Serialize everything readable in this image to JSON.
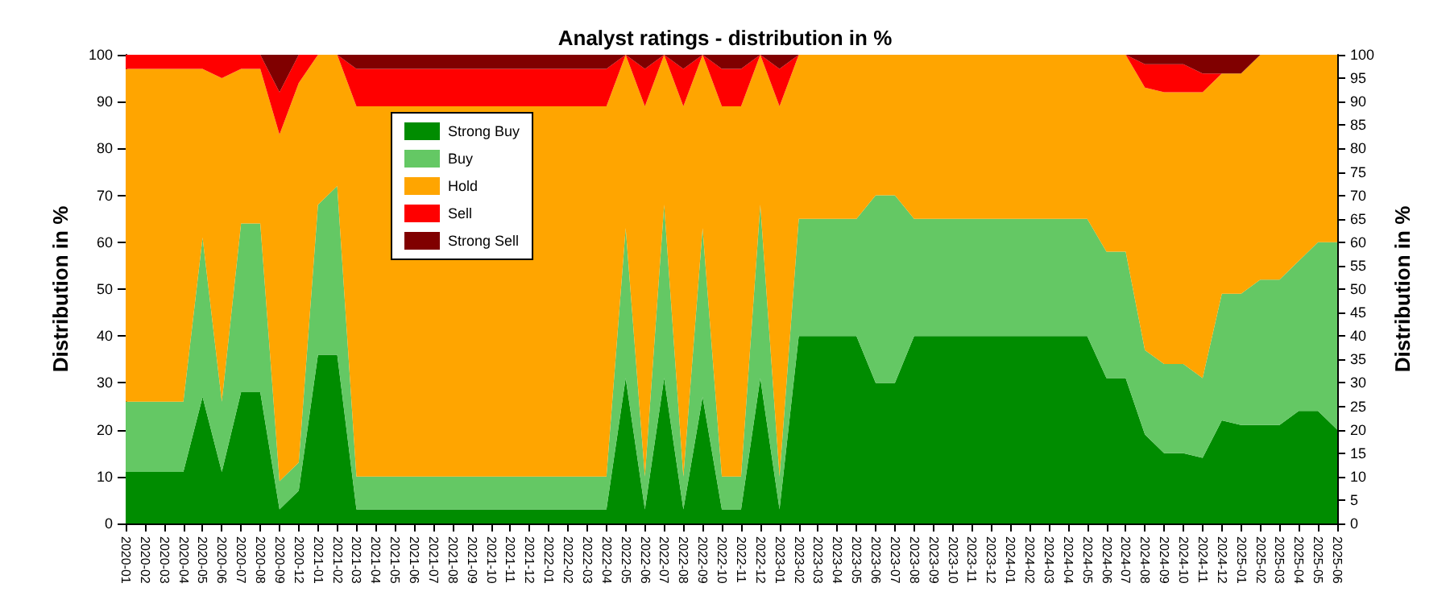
{
  "chart_data": {
    "type": "area",
    "stacked": true,
    "title": "Analyst ratings - distribution in %",
    "ylabel": "Distribution in %",
    "y2label": "Distribution in %",
    "categories": [
      "2020-01",
      "2020-02",
      "2020-03",
      "2020-04",
      "2020-05",
      "2020-06",
      "2020-07",
      "2020-08",
      "2020-09",
      "2020-12",
      "2021-01",
      "2021-02",
      "2021-03",
      "2021-04",
      "2021-05",
      "2021-06",
      "2021-07",
      "2021-08",
      "2021-09",
      "2021-10",
      "2021-11",
      "2021-12",
      "2022-01",
      "2022-02",
      "2022-03",
      "2022-04",
      "2022-05",
      "2022-06",
      "2022-07",
      "2022-08",
      "2022-09",
      "2022-10",
      "2022-11",
      "2022-12",
      "2023-01",
      "2023-02",
      "2023-03",
      "2023-04",
      "2023-05",
      "2023-06",
      "2023-07",
      "2023-08",
      "2023-09",
      "2023-10",
      "2023-11",
      "2023-12",
      "2024-01",
      "2024-02",
      "2024-03",
      "2024-04",
      "2024-05",
      "2024-06",
      "2024-07",
      "2024-08",
      "2024-09",
      "2024-10",
      "2024-11",
      "2024-12",
      "2025-01",
      "2025-02",
      "2025-03",
      "2025-04",
      "2025-05",
      "2025-06"
    ],
    "series": [
      {
        "name": "Strong Buy",
        "color": "#008c00",
        "values": [
          11,
          11,
          11,
          11,
          27,
          11,
          28,
          28,
          3,
          7,
          36,
          36,
          3,
          3,
          3,
          3,
          3,
          3,
          3,
          3,
          3,
          3,
          3,
          3,
          3,
          3,
          31,
          3,
          31,
          3,
          27,
          3,
          3,
          31,
          3,
          40,
          40,
          40,
          40,
          30,
          30,
          40,
          40,
          40,
          40,
          40,
          40,
          40,
          40,
          40,
          40,
          31,
          31,
          19,
          15,
          15,
          14,
          22,
          21,
          21,
          21,
          24,
          24,
          20
        ]
      },
      {
        "name": "Buy",
        "color": "#64c864",
        "values": [
          15,
          15,
          15,
          15,
          34,
          15,
          36,
          36,
          6,
          6,
          32,
          36,
          7,
          7,
          7,
          7,
          7,
          7,
          7,
          7,
          7,
          7,
          7,
          7,
          7,
          7,
          32,
          7,
          37,
          7,
          36,
          7,
          7,
          37,
          7,
          25,
          25,
          25,
          25,
          40,
          40,
          25,
          25,
          25,
          25,
          25,
          25,
          25,
          25,
          25,
          25,
          27,
          27,
          18,
          19,
          19,
          17,
          27,
          28,
          31,
          31,
          32,
          36,
          40
        ]
      },
      {
        "name": "Hold",
        "color": "#ffa500",
        "values": [
          71,
          71,
          71,
          71,
          36,
          69,
          33,
          33,
          74,
          81,
          32,
          28,
          79,
          79,
          79,
          79,
          79,
          79,
          79,
          79,
          79,
          79,
          79,
          79,
          79,
          79,
          37,
          79,
          32,
          79,
          37,
          79,
          79,
          32,
          79,
          35,
          35,
          35,
          35,
          30,
          30,
          35,
          35,
          35,
          35,
          35,
          35,
          35,
          35,
          35,
          35,
          42,
          42,
          56,
          58,
          58,
          61,
          47,
          47,
          48,
          48,
          44,
          40,
          40
        ]
      },
      {
        "name": "Sell",
        "color": "#ff0000",
        "values": [
          3,
          3,
          3,
          3,
          3,
          5,
          3,
          3,
          9,
          6,
          0,
          0,
          8,
          8,
          8,
          8,
          8,
          8,
          8,
          8,
          8,
          8,
          8,
          8,
          8,
          8,
          0,
          8,
          0,
          8,
          0,
          8,
          8,
          0,
          8,
          0,
          0,
          0,
          0,
          0,
          0,
          0,
          0,
          0,
          0,
          0,
          0,
          0,
          0,
          0,
          0,
          0,
          0,
          5,
          6,
          6,
          4,
          0,
          0,
          0,
          0,
          0,
          0,
          0
        ]
      },
      {
        "name": "Strong Sell",
        "color": "#800000",
        "values": [
          0,
          0,
          0,
          0,
          0,
          0,
          0,
          0,
          8,
          0,
          0,
          0,
          3,
          3,
          3,
          3,
          3,
          3,
          3,
          3,
          3,
          3,
          3,
          3,
          3,
          3,
          0,
          3,
          0,
          3,
          0,
          3,
          3,
          0,
          3,
          0,
          0,
          0,
          0,
          0,
          0,
          0,
          0,
          0,
          0,
          0,
          0,
          0,
          0,
          0,
          0,
          0,
          0,
          2,
          2,
          2,
          4,
          4,
          4,
          0,
          0,
          0,
          0,
          0
        ]
      }
    ],
    "ylim": [
      0,
      100
    ],
    "yticks": [
      0,
      10,
      20,
      30,
      40,
      50,
      60,
      70,
      80,
      90,
      100
    ],
    "y2lim": [
      0,
      100
    ],
    "y2ticks": [
      0,
      5,
      10,
      15,
      20,
      25,
      30,
      35,
      40,
      45,
      50,
      55,
      60,
      65,
      70,
      75,
      80,
      85,
      90,
      95,
      100
    ],
    "legend": "top left",
    "grid": false
  }
}
